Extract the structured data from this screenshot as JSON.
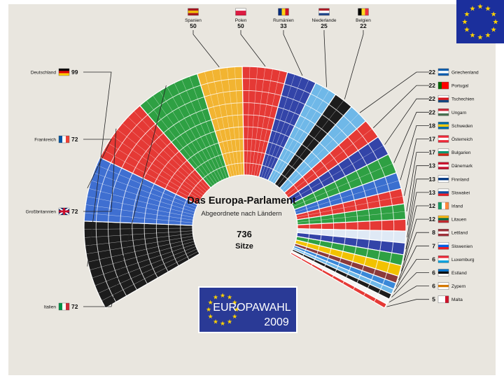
{
  "chart_data": {
    "type": "parliament-semicircle",
    "title": "Das Europa-Parlament",
    "subtitle": "Abgeordnete nach Ländern",
    "total_value": "736",
    "total_label": "Sitze",
    "banner_line1": "EUROPAWAHL",
    "banner_line2": "2009",
    "seat_rows": 9,
    "categories": [
      "Deutschland",
      "Frankreich",
      "Großbritannien",
      "Italien",
      "Spanien",
      "Polen",
      "Rumänien",
      "Niederlande",
      "Belgien",
      "Griechenland",
      "Portugal",
      "Tschechien",
      "Ungarn",
      "Schweden",
      "Österreich",
      "Bulgarien",
      "Dänemark",
      "Finnland",
      "Slowakei",
      "Irland",
      "Litauen",
      "Lettland",
      "Slowenien",
      "Luxemburg",
      "Estland",
      "Zypern",
      "Malta"
    ],
    "values": [
      99,
      72,
      72,
      72,
      50,
      50,
      33,
      25,
      22,
      22,
      22,
      22,
      22,
      18,
      17,
      17,
      13,
      13,
      13,
      12,
      12,
      8,
      7,
      6,
      6,
      6,
      5
    ],
    "colors": [
      "#1c1c1c",
      "#3f6fd1",
      "#e53935",
      "#2ea043",
      "#f2b431",
      "#e53935",
      "#3344a8",
      "#6fb8e8",
      "#1c1c1c",
      "#6fb8e8",
      "#e53935",
      "#3344a8",
      "#2ea043",
      "#3a6fcf",
      "#e53935",
      "#2ea043",
      "#e53935",
      "#dfe9f5",
      "#3344a8",
      "#2ea043",
      "#f2c200",
      "#8b3a3a",
      "#3a88d8",
      "#6fb8e8",
      "#1c1c1c",
      "#f5f5f5",
      "#e53935"
    ],
    "flags": [
      [
        "#000000",
        "#dd0000",
        "#ffce00",
        "h"
      ],
      [
        "#0055a4",
        "#ffffff",
        "#ef4135",
        "v"
      ],
      [
        "#012169",
        "#ffffff",
        "#c8102e",
        "uk"
      ],
      [
        "#009246",
        "#ffffff",
        "#ce2b37",
        "v"
      ],
      [
        "#aa151b",
        "#f1bf00",
        "#aa151b",
        "h"
      ],
      [
        "#ffffff",
        "#dc143c",
        "#dc143c",
        "h"
      ],
      [
        "#002b7f",
        "#fcd116",
        "#ce1126",
        "v"
      ],
      [
        "#ae1c28",
        "#ffffff",
        "#21468b",
        "h"
      ],
      [
        "#000000",
        "#fdda24",
        "#ef3340",
        "v"
      ],
      [
        "#0d5eaf",
        "#ffffff",
        "#0d5eaf",
        "h"
      ],
      [
        "#006600",
        "#ff0000",
        "#ff0000",
        "v"
      ],
      [
        "#ffffff",
        "#d7141a",
        "#11457e",
        "h"
      ],
      [
        "#ce2939",
        "#ffffff",
        "#477050",
        "h"
      ],
      [
        "#006aa7",
        "#fecc00",
        "#006aa7",
        "h"
      ],
      [
        "#ed2939",
        "#ffffff",
        "#ed2939",
        "h"
      ],
      [
        "#ffffff",
        "#00966e",
        "#d62612",
        "h"
      ],
      [
        "#c8102e",
        "#ffffff",
        "#c8102e",
        "h"
      ],
      [
        "#ffffff",
        "#003580",
        "#ffffff",
        "h"
      ],
      [
        "#ffffff",
        "#0b4ea2",
        "#ee1c25",
        "h"
      ],
      [
        "#169b62",
        "#ffffff",
        "#ff883e",
        "v"
      ],
      [
        "#fdb913",
        "#006a44",
        "#c1272d",
        "h"
      ],
      [
        "#9e3039",
        "#ffffff",
        "#9e3039",
        "h"
      ],
      [
        "#ffffff",
        "#005ce6",
        "#ed1c24",
        "h"
      ],
      [
        "#ed2939",
        "#ffffff",
        "#00a1de",
        "h"
      ],
      [
        "#0072ce",
        "#000000",
        "#ffffff",
        "h"
      ],
      [
        "#ffffff",
        "#d57800",
        "#ffffff",
        "h"
      ],
      [
        "#ffffff",
        "#ffffff",
        "#cf142b",
        "v"
      ]
    ]
  }
}
